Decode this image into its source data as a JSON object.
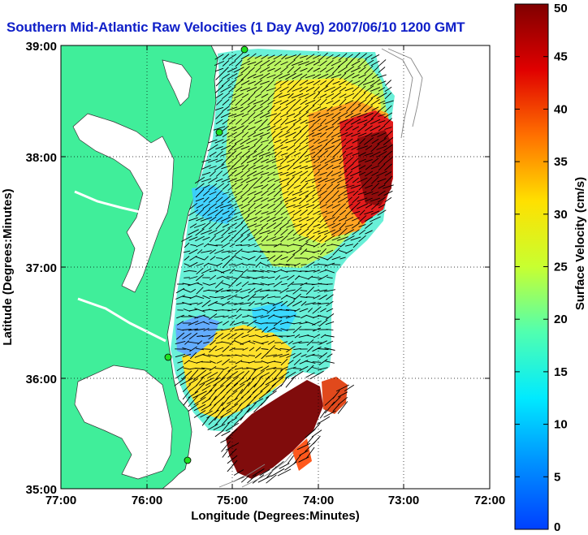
{
  "title": "Southern Mid-Atlantic Raw Velocities (1 Day Avg) 2007/06/10 1200 GMT",
  "map": {
    "xlabel": "Longitude (Degrees:Minutes)",
    "ylabel": "Latitude (Degrees:Minutes)",
    "lon_range": [
      -77,
      -72
    ],
    "lat_range": [
      35,
      39
    ],
    "x_ticks": [
      "77:00",
      "76:00",
      "75:00",
      "74:00",
      "73:00",
      "72:00"
    ],
    "y_ticks": [
      "39:00",
      "38:00",
      "37:00",
      "36:00",
      "35:00"
    ],
    "grid": "dotted",
    "land_color": "#40ee9a",
    "vector_color": "#000000",
    "station_color": "#20e020"
  },
  "colorbar": {
    "label": "Surface Velocity (cm/s)",
    "min": 0,
    "max": 50,
    "ticks": [
      "50",
      "45",
      "40",
      "35",
      "30",
      "25",
      "20",
      "15",
      "10",
      "5",
      "0"
    ],
    "colormap": "jet"
  }
}
